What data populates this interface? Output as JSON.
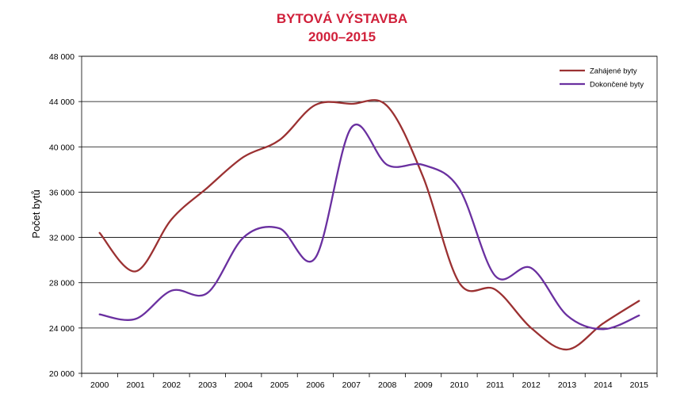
{
  "chart_data": {
    "type": "line",
    "title": "BYTOVÁ VÝSTAVBA",
    "subtitle": "2000–2015",
    "ylabel": "Počet bytů",
    "xlabel": "",
    "categories": [
      "2000",
      "2001",
      "2002",
      "2003",
      "2004",
      "2005",
      "2006",
      "2007",
      "2008",
      "2009",
      "2010",
      "2011",
      "2012",
      "2013",
      "2014",
      "2015"
    ],
    "ylim": [
      20000,
      48000
    ],
    "yticks": [
      20000,
      24000,
      28000,
      32000,
      36000,
      40000,
      44000,
      48000
    ],
    "ytick_labels": [
      "20 000",
      "24 000",
      "28 000",
      "32 000",
      "36 000",
      "40 000",
      "44 000",
      "48 000"
    ],
    "grid": true,
    "legend_position": "top-right",
    "series": [
      {
        "name": "Zahájené byty",
        "color": "#9b3132",
        "values": [
          32400,
          29000,
          33600,
          36400,
          39100,
          40600,
          43700,
          43800,
          43600,
          37300,
          28000,
          27400,
          24000,
          22100,
          24400,
          26400
        ]
      },
      {
        "name": "Dokončené byty",
        "color": "#6a30a0",
        "values": [
          25200,
          24800,
          27300,
          27100,
          32000,
          32800,
          30200,
          41700,
          38400,
          38400,
          36300,
          28600,
          29300,
          25100,
          23900,
          25100
        ]
      }
    ]
  }
}
